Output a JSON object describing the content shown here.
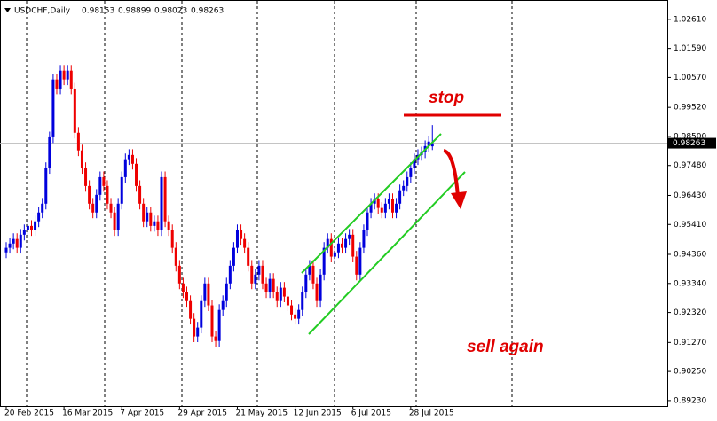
{
  "chart_data": {
    "type": "candlestick",
    "symbol": "USDCHF,Daily",
    "up_color": "#0000dd",
    "down_color": "#ee0000",
    "grid": false,
    "ylim": [
      0.8904,
      1.0329
    ],
    "yticks": [
      {
        "value": 1.0261,
        "label": "1.02610"
      },
      {
        "value": 1.0159,
        "label": "1.01590"
      },
      {
        "value": 1.0057,
        "label": "1.00570"
      },
      {
        "value": 0.9952,
        "label": "0.99520"
      },
      {
        "value": 0.985,
        "label": "0.98500"
      },
      {
        "value": 0.9748,
        "label": "0.97480"
      },
      {
        "value": 0.9643,
        "label": "0.96430"
      },
      {
        "value": 0.9541,
        "label": "0.95410"
      },
      {
        "value": 0.9436,
        "label": "0.94360"
      },
      {
        "value": 0.9334,
        "label": "0.93340"
      },
      {
        "value": 0.9232,
        "label": "0.92320"
      },
      {
        "value": 0.9127,
        "label": "0.91270"
      },
      {
        "value": 0.9025,
        "label": "0.90250"
      },
      {
        "value": 0.8923,
        "label": "0.89230"
      }
    ],
    "categories": [
      "20 Feb 2015",
      null,
      null,
      null,
      null,
      null,
      null,
      null,
      null,
      null,
      null,
      null,
      null,
      null,
      null,
      null,
      "16 Mar 2015",
      null,
      null,
      null,
      null,
      null,
      null,
      null,
      null,
      null,
      null,
      null,
      null,
      null,
      null,
      null,
      "7 Apr 2015",
      null,
      null,
      null,
      null,
      null,
      null,
      null,
      null,
      null,
      null,
      null,
      null,
      null,
      null,
      null,
      "29 Apr 2015",
      null,
      null,
      null,
      null,
      null,
      null,
      null,
      null,
      null,
      null,
      null,
      null,
      null,
      null,
      null,
      "21 May 2015",
      null,
      null,
      null,
      null,
      null,
      null,
      null,
      null,
      null,
      null,
      null,
      null,
      null,
      null,
      null,
      "12 Jun 2015",
      null,
      null,
      null,
      null,
      null,
      null,
      null,
      null,
      null,
      null,
      null,
      null,
      null,
      null,
      null,
      "6 Jul 2015",
      null,
      null,
      null,
      null,
      null,
      null,
      null,
      null,
      null,
      null,
      null,
      null,
      null,
      null,
      null,
      "28 Jul 2015",
      null,
      null,
      null,
      null,
      null,
      null
    ],
    "open": [
      0.9443,
      0.9459,
      0.9474,
      0.949,
      0.9459,
      0.9505,
      0.9521,
      0.9536,
      0.9521,
      0.9552,
      0.9583,
      0.9614,
      0.9739,
      0.9847,
      1.005,
      1.0018,
      1.0081,
      1.005,
      1.0081,
      1.0018,
      0.9863,
      0.9801,
      0.9739,
      0.9676,
      0.9614,
      0.9583,
      0.9645,
      0.9707,
      0.9676,
      0.9614,
      0.9583,
      0.9521,
      0.9614,
      0.9707,
      0.977,
      0.9785,
      0.9754,
      0.9676,
      0.9614,
      0.9552,
      0.9583,
      0.9536,
      0.9552,
      0.9521,
      0.9707,
      0.9552,
      0.9521,
      0.9459,
      0.9396,
      0.9334,
      0.9303,
      0.9272,
      0.921,
      0.9148,
      0.9179,
      0.9272,
      0.9334,
      0.9257,
      0.9148,
      0.9132,
      0.9241,
      0.9272,
      0.9334,
      0.9396,
      0.9459,
      0.9521,
      0.949,
      0.9459,
      0.9396,
      0.9334,
      0.9365,
      0.9396,
      0.9334,
      0.9303,
      0.935,
      0.9303,
      0.9272,
      0.9319,
      0.9288,
      0.9257,
      0.9225,
      0.921,
      0.9241,
      0.9303,
      0.9365,
      0.9396,
      0.9334,
      0.9272,
      0.9365,
      0.9459,
      0.949,
      0.9428,
      0.9443,
      0.9474,
      0.9459,
      0.949,
      0.9505,
      0.9428,
      0.9365,
      0.9459,
      0.9521,
      0.9583,
      0.9614,
      0.963,
      0.9599,
      0.9583,
      0.9614,
      0.963,
      0.9583,
      0.9614,
      0.9661,
      0.9676,
      0.9707,
      0.9739,
      0.977,
      0.9785,
      0.9794,
      0.9816,
      0.98153
    ],
    "high": [
      0.9479,
      0.9494,
      0.951,
      0.951,
      0.9525,
      0.9541,
      0.9556,
      0.9556,
      0.9572,
      0.9603,
      0.9634,
      0.9759,
      0.9867,
      1.007,
      1.007,
      1.0101,
      1.0101,
      1.0101,
      1.0101,
      1.0038,
      0.9883,
      0.9821,
      0.9759,
      0.9696,
      0.9634,
      0.9665,
      0.9727,
      0.9727,
      0.9696,
      0.9634,
      0.9603,
      0.9634,
      0.9727,
      0.979,
      0.9805,
      0.9805,
      0.9774,
      0.9696,
      0.9634,
      0.9603,
      0.9603,
      0.9572,
      0.9572,
      0.9727,
      0.9727,
      0.9572,
      0.9541,
      0.9479,
      0.9416,
      0.9354,
      0.9323,
      0.9292,
      0.923,
      0.9199,
      0.9292,
      0.9354,
      0.9354,
      0.9277,
      0.9168,
      0.9261,
      0.9292,
      0.9354,
      0.9416,
      0.9479,
      0.9541,
      0.9541,
      0.951,
      0.9479,
      0.9416,
      0.9385,
      0.9416,
      0.9416,
      0.9354,
      0.937,
      0.937,
      0.9323,
      0.9339,
      0.9339,
      0.9308,
      0.9277,
      0.9245,
      0.9261,
      0.9323,
      0.9385,
      0.9416,
      0.9416,
      0.9354,
      0.9385,
      0.9479,
      0.951,
      0.951,
      0.9463,
      0.9494,
      0.9494,
      0.951,
      0.9525,
      0.9525,
      0.9448,
      0.9479,
      0.9541,
      0.9603,
      0.9634,
      0.965,
      0.965,
      0.9619,
      0.9634,
      0.965,
      0.965,
      0.9634,
      0.9681,
      0.9696,
      0.9727,
      0.9759,
      0.979,
      0.9805,
      0.9814,
      0.9836,
      0.9852,
      0.98899
    ],
    "low": [
      0.9423,
      0.9439,
      0.9454,
      0.9439,
      0.9439,
      0.9485,
      0.9501,
      0.9501,
      0.9501,
      0.9532,
      0.9563,
      0.9594,
      0.9719,
      0.9827,
      0.9998,
      0.9998,
      1.003,
      1.003,
      0.9998,
      0.9843,
      0.9781,
      0.9719,
      0.9656,
      0.9594,
      0.9563,
      0.9563,
      0.9625,
      0.9656,
      0.9594,
      0.9563,
      0.9501,
      0.9501,
      0.9594,
      0.9687,
      0.975,
      0.9734,
      0.9656,
      0.9594,
      0.9532,
      0.9532,
      0.9516,
      0.9516,
      0.9501,
      0.9501,
      0.9532,
      0.9501,
      0.9439,
      0.9376,
      0.9314,
      0.9283,
      0.9252,
      0.919,
      0.9128,
      0.9128,
      0.9159,
      0.9252,
      0.9237,
      0.9128,
      0.9112,
      0.9112,
      0.9221,
      0.9252,
      0.9314,
      0.9376,
      0.9439,
      0.947,
      0.9439,
      0.9376,
      0.9314,
      0.9314,
      0.9345,
      0.9314,
      0.9283,
      0.9283,
      0.9283,
      0.9252,
      0.9252,
      0.9268,
      0.9237,
      0.9205,
      0.919,
      0.919,
      0.9221,
      0.9283,
      0.9345,
      0.9314,
      0.9252,
      0.9252,
      0.9345,
      0.9439,
      0.9408,
      0.9408,
      0.9423,
      0.9439,
      0.9439,
      0.947,
      0.9408,
      0.9345,
      0.9345,
      0.9439,
      0.9501,
      0.9563,
      0.9594,
      0.9579,
      0.9563,
      0.9563,
      0.9594,
      0.9563,
      0.9563,
      0.9594,
      0.9641,
      0.9656,
      0.9687,
      0.9719,
      0.975,
      0.9765,
      0.9774,
      0.9796,
      0.98023
    ],
    "close": [
      0.9459,
      0.9474,
      0.949,
      0.9459,
      0.9505,
      0.9521,
      0.9536,
      0.9521,
      0.9552,
      0.9583,
      0.9614,
      0.9739,
      0.9847,
      1.005,
      1.0018,
      1.0081,
      1.005,
      1.0081,
      1.0018,
      0.9863,
      0.9801,
      0.9739,
      0.9676,
      0.9614,
      0.9583,
      0.9645,
      0.9707,
      0.9676,
      0.9614,
      0.9583,
      0.9521,
      0.9614,
      0.9707,
      0.977,
      0.9785,
      0.9754,
      0.9676,
      0.9614,
      0.9552,
      0.9583,
      0.9536,
      0.9552,
      0.9521,
      0.9707,
      0.9552,
      0.9521,
      0.9459,
      0.9396,
      0.9334,
      0.9303,
      0.9272,
      0.921,
      0.9148,
      0.9179,
      0.9272,
      0.9334,
      0.9257,
      0.9148,
      0.9132,
      0.9241,
      0.9272,
      0.9334,
      0.9396,
      0.9459,
      0.9521,
      0.949,
      0.9459,
      0.9396,
      0.9334,
      0.9365,
      0.9396,
      0.9334,
      0.9303,
      0.935,
      0.9303,
      0.9272,
      0.9319,
      0.9288,
      0.9257,
      0.9225,
      0.921,
      0.9241,
      0.9303,
      0.9365,
      0.9396,
      0.9334,
      0.9272,
      0.9365,
      0.9459,
      0.949,
      0.9428,
      0.9443,
      0.9474,
      0.9459,
      0.949,
      0.9505,
      0.9428,
      0.9365,
      0.9459,
      0.9521,
      0.9583,
      0.9614,
      0.963,
      0.9599,
      0.9583,
      0.9614,
      0.963,
      0.9583,
      0.9614,
      0.9661,
      0.9676,
      0.9707,
      0.9739,
      0.977,
      0.9785,
      0.9794,
      0.9816,
      0.9832,
      0.98263
    ],
    "annotations": [
      "stop",
      "sell again"
    ]
  }
}
